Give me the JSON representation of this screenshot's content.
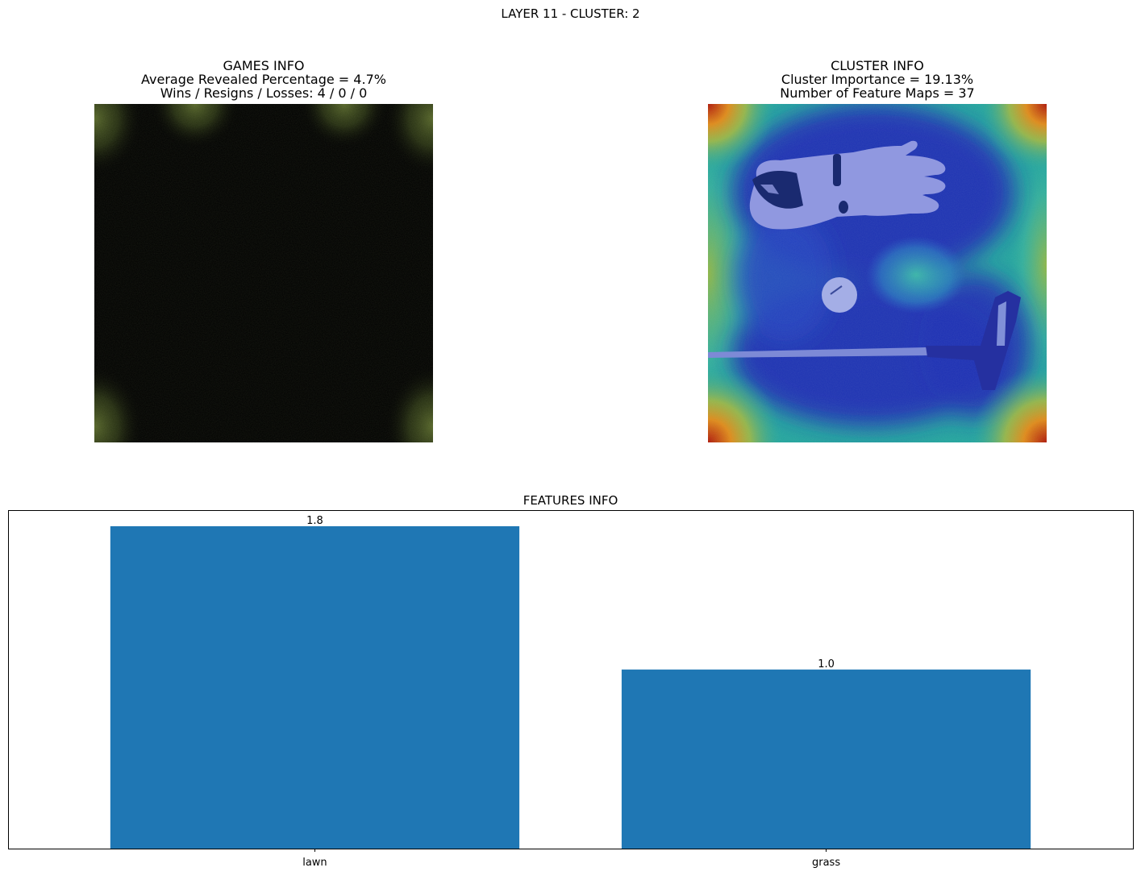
{
  "figure": {
    "suptitle": "LAYER 11 - CLUSTER: 2"
  },
  "games_panel": {
    "title": "GAMES INFO",
    "line1": "Average Revealed Percentage = 4.7%",
    "line2": "Wins / Resigns / Losses: 4 / 0 / 0"
  },
  "cluster_panel": {
    "title": "CLUSTER INFO",
    "line1": "Cluster Importance = 19.13%",
    "line2": "Number of Feature Maps = 37"
  },
  "chart_data": {
    "type": "bar",
    "title": "FEATURES INFO",
    "categories": [
      "lawn",
      "grass"
    ],
    "values": [
      1.8,
      1.0
    ],
    "value_labels": [
      "1.8",
      "1.0"
    ],
    "xlabel": "",
    "ylabel": "",
    "ylim": [
      0,
      1.89
    ],
    "bar_color": "#1f77b4",
    "grid": false,
    "yticks_visible": false
  },
  "colors": {
    "bar": "#1f77b4",
    "background": "#ffffff",
    "mask": "#000000"
  }
}
